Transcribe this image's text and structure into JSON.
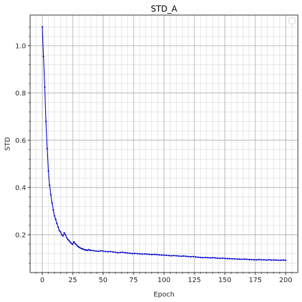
{
  "chart_data": {
    "type": "line",
    "title": "STD_A",
    "xlabel": "Epoch",
    "ylabel": "STD",
    "xlim": [
      -10,
      210
    ],
    "ylim": [
      0.04,
      1.13
    ],
    "xticks": [
      0,
      25,
      50,
      75,
      100,
      125,
      150,
      175,
      200
    ],
    "yticks": [
      0.2,
      0.4,
      0.6,
      0.8,
      1.0
    ],
    "ytick_labels": [
      "0.2",
      "0.4",
      "0.6",
      "0.8",
      "1.0"
    ],
    "grid": true,
    "minor_grid": true,
    "legend": "upper right",
    "series": [
      {
        "color": "#0000cc",
        "marker": "dot",
        "x": [
          0,
          1,
          2,
          3,
          4,
          5,
          6,
          7,
          8,
          9,
          10,
          11,
          12,
          13,
          14,
          15,
          16,
          17,
          18,
          19,
          20,
          21,
          22,
          23,
          24,
          25,
          26,
          27,
          28,
          29,
          30,
          31,
          32,
          33,
          34,
          35,
          36,
          37,
          38,
          39,
          40,
          42,
          44,
          46,
          48,
          50,
          52,
          54,
          56,
          58,
          60,
          62,
          64,
          66,
          68,
          70,
          72,
          74,
          76,
          78,
          80,
          82,
          84,
          86,
          88,
          90,
          92,
          94,
          96,
          98,
          100,
          102,
          104,
          106,
          108,
          110,
          112,
          114,
          116,
          118,
          120,
          122,
          124,
          126,
          128,
          130,
          132,
          134,
          136,
          138,
          140,
          142,
          144,
          146,
          148,
          150,
          152,
          154,
          156,
          158,
          160,
          162,
          164,
          166,
          168,
          170,
          172,
          174,
          176,
          178,
          180,
          182,
          184,
          186,
          188,
          190,
          192,
          194,
          196,
          198,
          200
        ],
        "y": [
          1.08,
          0.955,
          0.825,
          0.68,
          0.565,
          0.47,
          0.41,
          0.37,
          0.335,
          0.305,
          0.28,
          0.265,
          0.248,
          0.232,
          0.218,
          0.212,
          0.2,
          0.195,
          0.208,
          0.2,
          0.188,
          0.18,
          0.175,
          0.168,
          0.163,
          0.16,
          0.17,
          0.163,
          0.158,
          0.152,
          0.148,
          0.145,
          0.142,
          0.14,
          0.138,
          0.136,
          0.135,
          0.134,
          0.137,
          0.135,
          0.134,
          0.133,
          0.131,
          0.13,
          0.132,
          0.131,
          0.129,
          0.128,
          0.129,
          0.127,
          0.126,
          0.124,
          0.125,
          0.126,
          0.124,
          0.123,
          0.122,
          0.12,
          0.121,
          0.12,
          0.119,
          0.118,
          0.119,
          0.118,
          0.117,
          0.116,
          0.117,
          0.116,
          0.115,
          0.114,
          0.114,
          0.113,
          0.112,
          0.111,
          0.112,
          0.111,
          0.11,
          0.109,
          0.11,
          0.109,
          0.108,
          0.107,
          0.108,
          0.106,
          0.105,
          0.104,
          0.103,
          0.104,
          0.103,
          0.102,
          0.103,
          0.102,
          0.101,
          0.1,
          0.101,
          0.1,
          0.099,
          0.099,
          0.098,
          0.098,
          0.097,
          0.097,
          0.096,
          0.097,
          0.096,
          0.095,
          0.095,
          0.094,
          0.094,
          0.095,
          0.094,
          0.094,
          0.093,
          0.094,
          0.093,
          0.093,
          0.093,
          0.092,
          0.092,
          0.093,
          0.092
        ]
      }
    ]
  }
}
